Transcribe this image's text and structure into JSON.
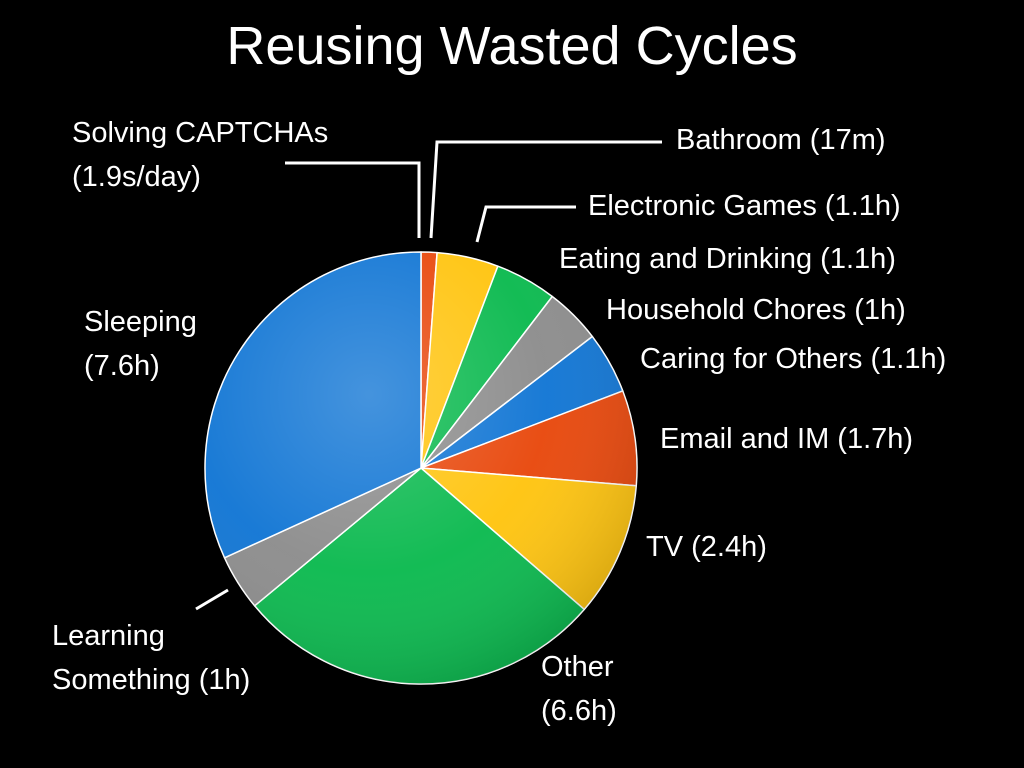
{
  "slide": {
    "title": "Reusing Wasted Cycles"
  },
  "chart_data": {
    "type": "pie",
    "unit": "hours per day",
    "slices": [
      {
        "label": "Solving CAPTCHAs (1.9s/day)",
        "value": 0.000528,
        "color": "#1a1a1a"
      },
      {
        "label": "Bathroom (17m)",
        "value": 0.283,
        "color": "#e8470b"
      },
      {
        "label": "Electronic Games (1.1h)",
        "value": 1.1,
        "color": "#ffc40e"
      },
      {
        "label": "Eating and Drinking (1.1h)",
        "value": 1.1,
        "color": "#0ab94e"
      },
      {
        "label": "Household Chores (1h)",
        "value": 1.0,
        "color": "#8c8c8c"
      },
      {
        "label": "Caring for Others (1.1h)",
        "value": 1.1,
        "color": "#1075d4"
      },
      {
        "label": "Email and IM (1.7h)",
        "value": 1.7,
        "color": "#e8470b"
      },
      {
        "label": "TV (2.4h)",
        "value": 2.4,
        "color": "#ffc40e"
      },
      {
        "label": "Other (6.6h)",
        "value": 6.6,
        "color": "#0ab94e"
      },
      {
        "label": "Learning Something (1h)",
        "value": 1.0,
        "color": "#8c8c8c"
      },
      {
        "label": "Sleeping (7.6h)",
        "value": 7.6,
        "color": "#1075d4"
      }
    ]
  },
  "labels": {
    "captcha": [
      "Solving CAPTCHAs",
      "(1.9s/day)"
    ],
    "bathroom": "Bathroom (17m)",
    "games": "Electronic Games (1.1h)",
    "eating": "Eating and Drinking (1.1h)",
    "chores": "Household Chores (1h)",
    "caring": "Caring for Others (1.1h)",
    "email": "Email and IM (1.7h)",
    "tv": "TV (2.4h)",
    "other": [
      "Other",
      "(6.6h)"
    ],
    "learning": [
      "Learning",
      "Something (1h)"
    ],
    "sleeping": [
      "Sleeping",
      "(7.6h)"
    ]
  }
}
